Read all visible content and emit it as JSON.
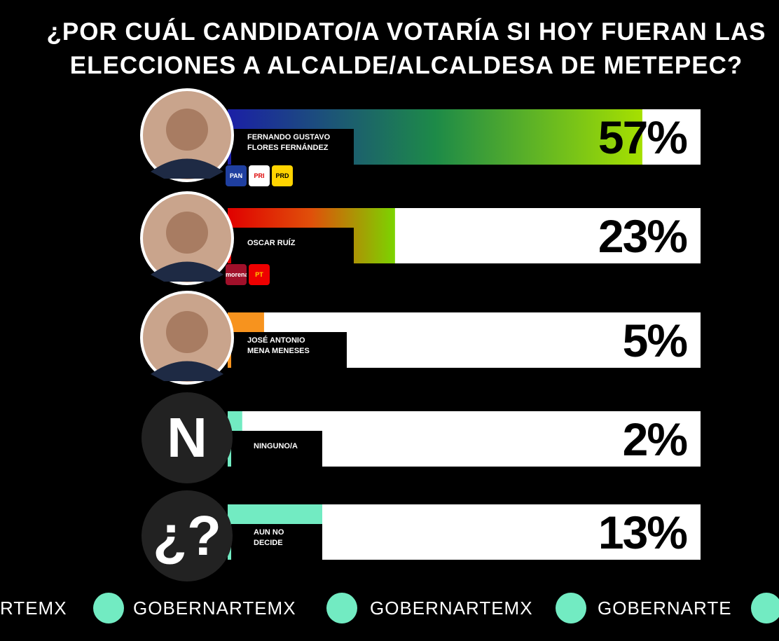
{
  "chart_data": {
    "type": "hbar",
    "title": "¿POR CUÁL CANDIDATO/A VOTARÍA SI HOY FUERAN LAS\nELECCIONES A ALCALDE/ALCALDESA DE METEPEC?",
    "categories": [
      "FERNANDO GUSTAVO\nFLORES FERNÁNDEZ",
      "OSCAR RUÍZ",
      "JOSÉ ANTONIO\nMENA MENESES",
      "NINGUNO/A",
      "AUN NO\nDECIDE"
    ],
    "values": [
      57,
      23,
      5,
      2,
      13
    ],
    "value_labels": [
      "57%",
      "23%",
      "5%",
      "2%",
      "13%"
    ],
    "colors": [
      [
        "#1b1fa6",
        "#1d8a48",
        "#a6e000"
      ],
      [
        "#e00000",
        "#e0500a",
        "#7bd400"
      ],
      [
        "#f7931e"
      ],
      [
        "#72ebc2"
      ],
      [
        "#72ebc2"
      ]
    ],
    "badges": [
      null,
      null,
      null,
      "N",
      "¿?"
    ],
    "parties": [
      [
        "PAN",
        "PRI",
        "PRD"
      ],
      [
        "morena",
        "PT"
      ],
      [],
      [],
      []
    ],
    "xlim": [
      0,
      65
    ]
  },
  "footer": {
    "handles": [
      "RTEMX",
      "GOBERNARTEMX",
      "GOBERNARTEMX",
      "GOBERNARTE"
    ]
  }
}
